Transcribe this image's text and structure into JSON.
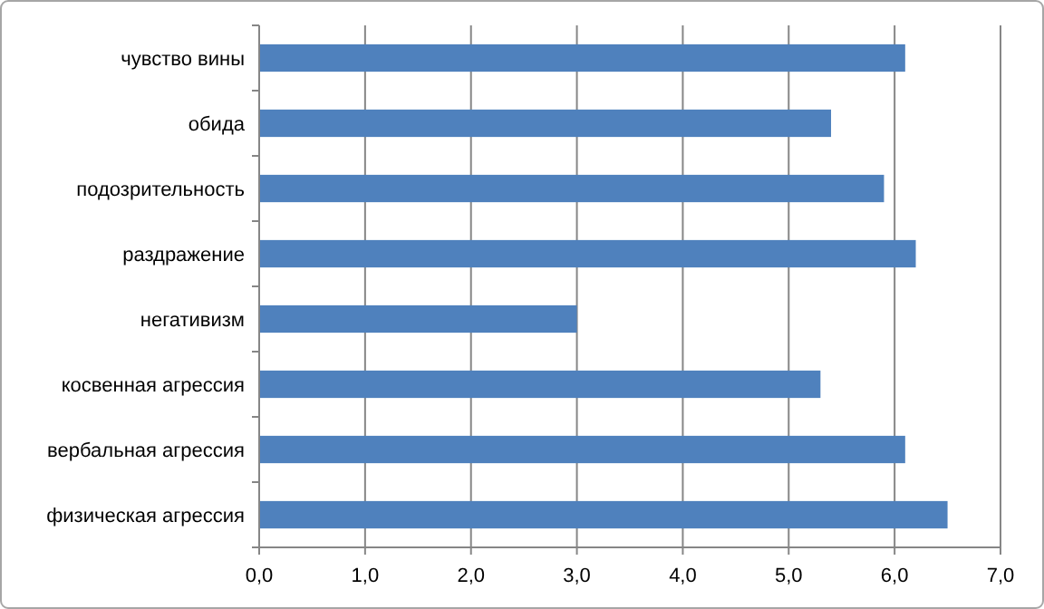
{
  "chart_data": {
    "type": "bar",
    "orientation": "horizontal",
    "categories": [
      "чувство вины",
      "обида",
      "подозрительность",
      "раздражение",
      "негативизм",
      "косвенная агрессия",
      "вербальная агрессия",
      "физическая агрессия"
    ],
    "values": [
      6.1,
      5.4,
      5.9,
      6.2,
      3.0,
      5.3,
      6.1,
      6.5
    ],
    "color": "#4f81bd",
    "xlim": [
      0,
      7
    ],
    "xticks": [
      {
        "value": 0,
        "label": "0,0"
      },
      {
        "value": 1,
        "label": "1,0"
      },
      {
        "value": 2,
        "label": "2,0"
      },
      {
        "value": 3,
        "label": "3,0"
      },
      {
        "value": 4,
        "label": "4,0"
      },
      {
        "value": 5,
        "label": "5,0"
      },
      {
        "value": 6,
        "label": "6,0"
      },
      {
        "value": 7,
        "label": "7,0"
      }
    ],
    "grid": "x"
  }
}
